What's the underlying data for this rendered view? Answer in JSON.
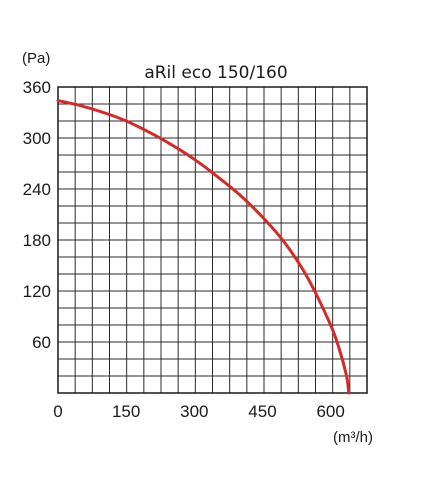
{
  "chart_data": {
    "type": "line",
    "title": "aRil eco 150/160",
    "ylabel": "(Pa)",
    "xlabel": "(m³/h)",
    "xlim": [
      0,
      680
    ],
    "ylim": [
      0,
      360
    ],
    "x_ticks": [
      0,
      150,
      300,
      450,
      600
    ],
    "y_ticks": [
      60,
      120,
      180,
      240,
      300,
      360
    ],
    "grid": true,
    "series": [
      {
        "color": "#d42a2a",
        "x": [
          0,
          50,
          100,
          150,
          200,
          250,
          300,
          350,
          400,
          450,
          500,
          550,
          600,
          620,
          635,
          640
        ],
        "y": [
          344,
          338,
          330,
          320,
          307,
          292,
          275,
          255,
          233,
          207,
          176,
          135,
          80,
          50,
          20,
          0
        ]
      }
    ]
  }
}
